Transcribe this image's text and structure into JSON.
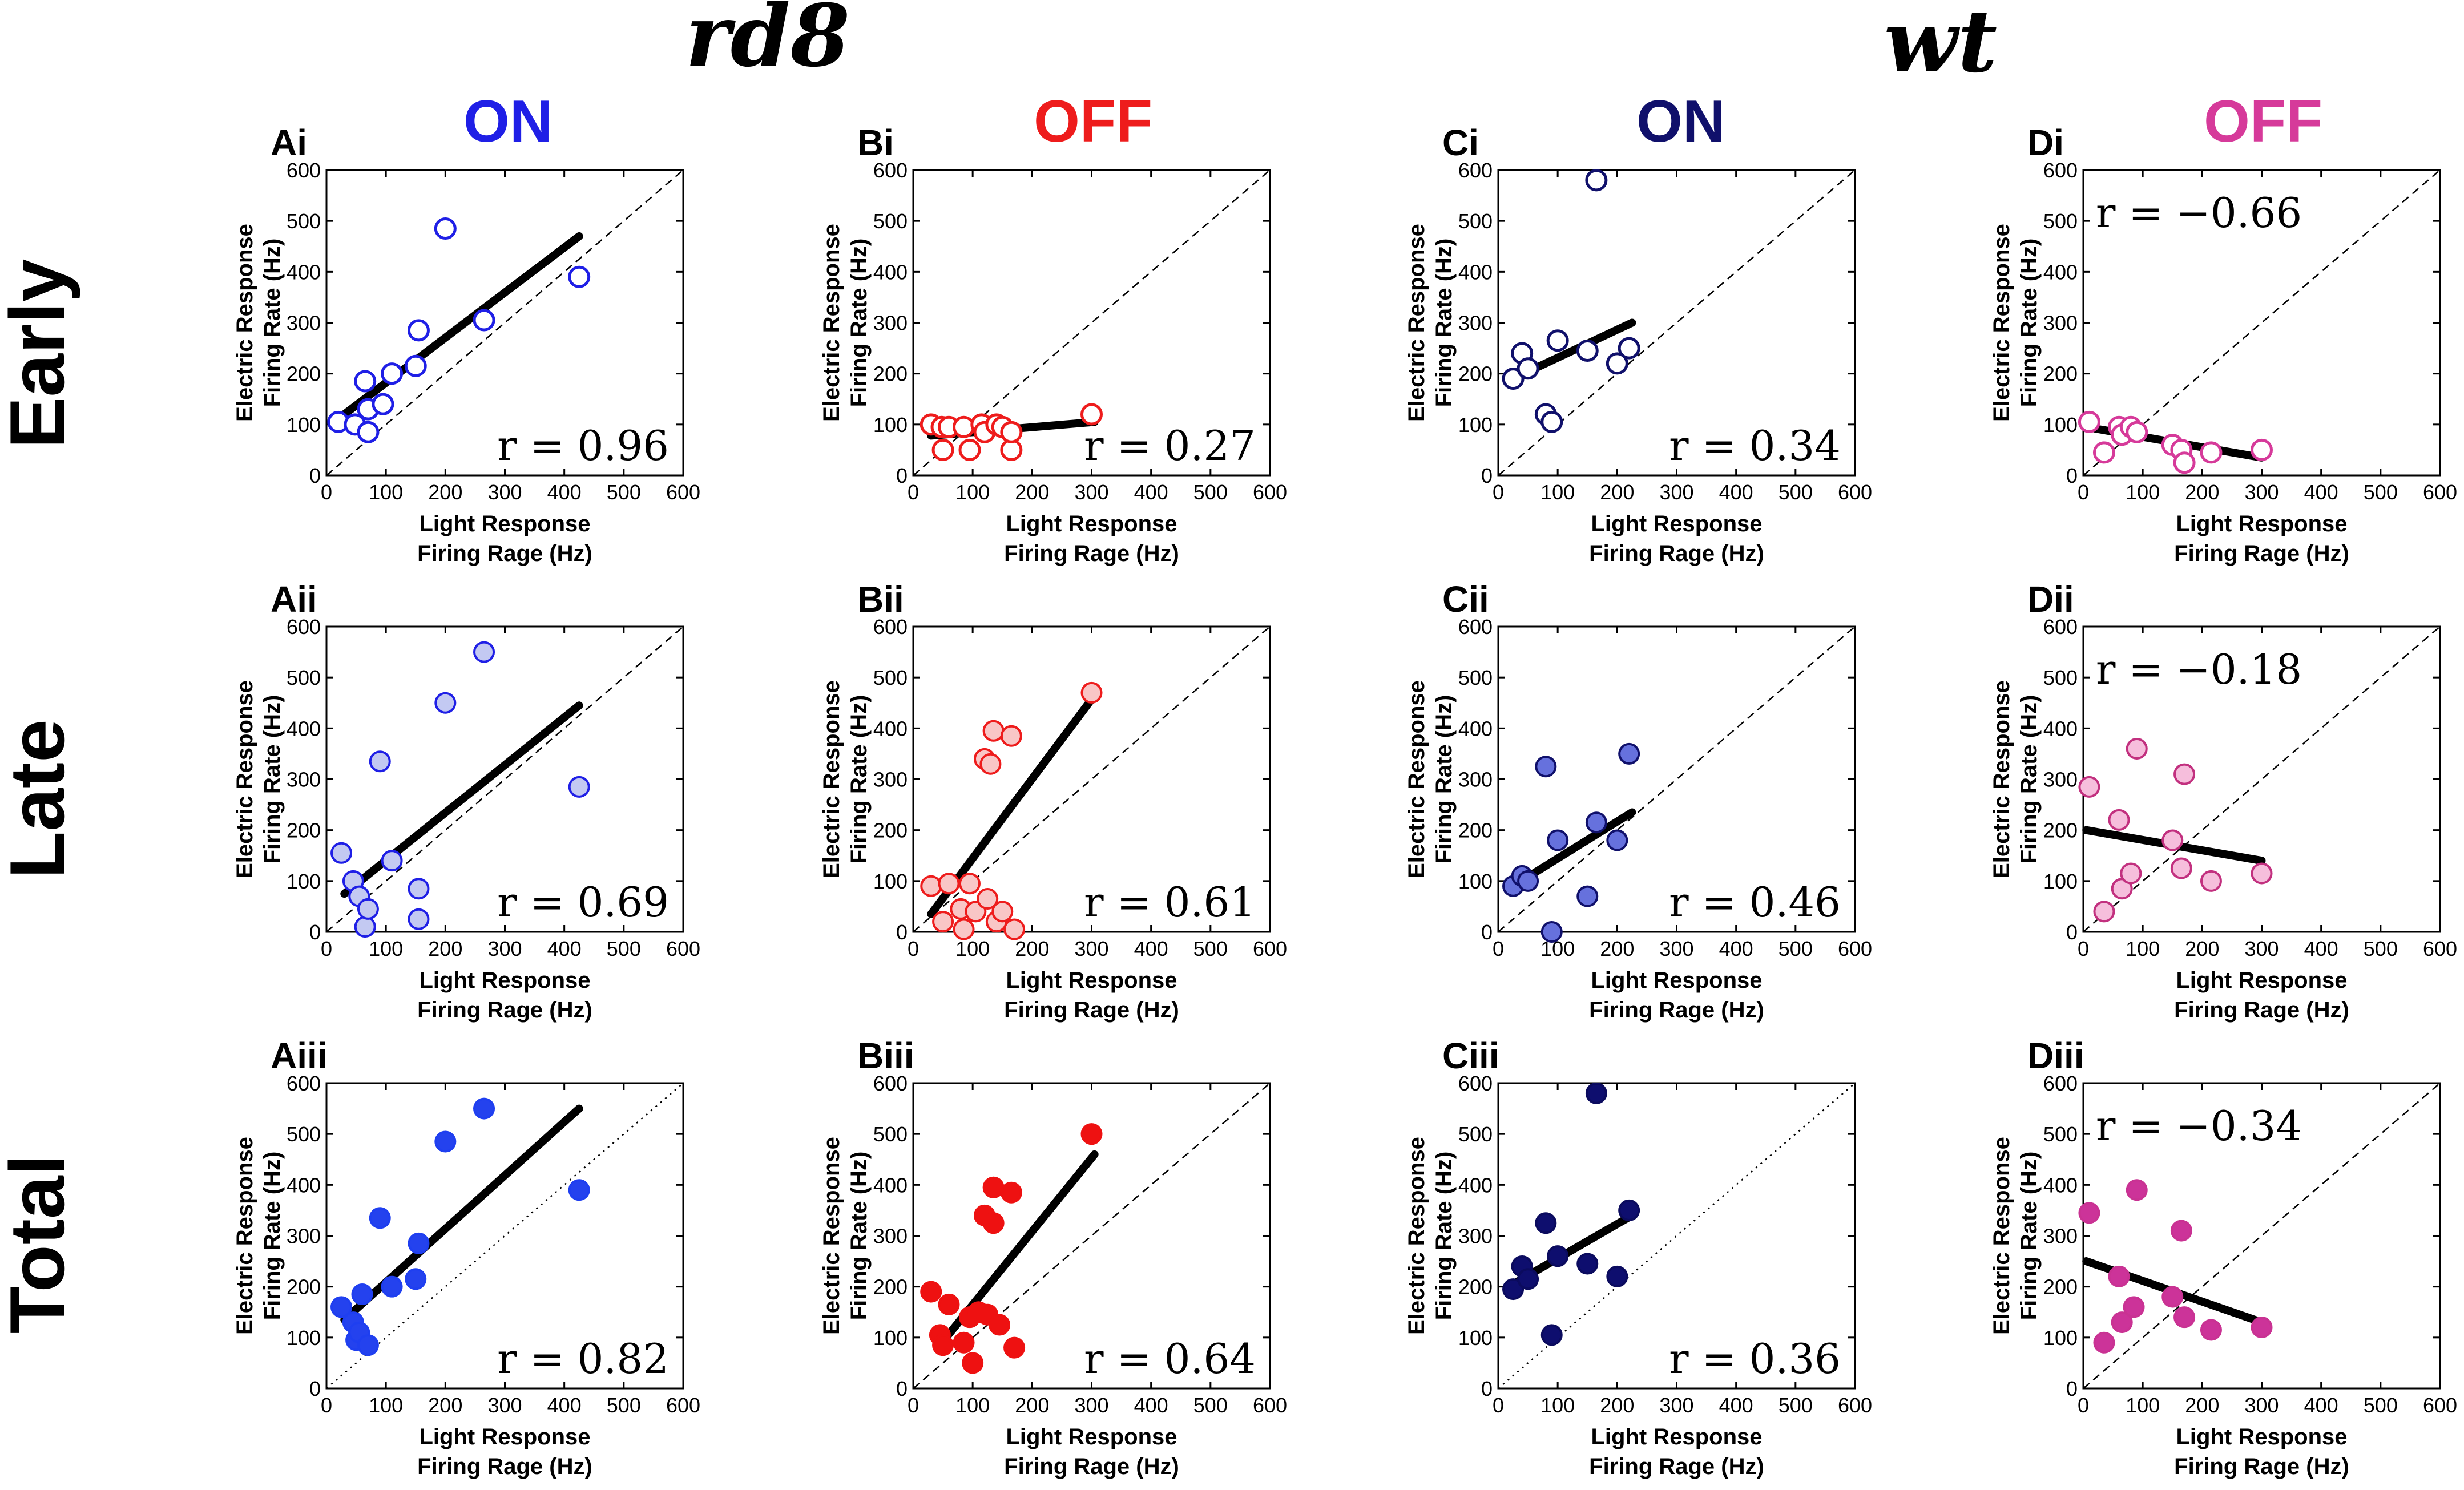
{
  "headers": {
    "groups": [
      "rd8",
      "wt"
    ],
    "columns": [
      {
        "id": "A",
        "label": "ON",
        "color": "#1f1fe6"
      },
      {
        "id": "B",
        "label": "OFF",
        "color": "#ee1c1c"
      },
      {
        "id": "C",
        "label": "ON",
        "color": "#10106b"
      },
      {
        "id": "D",
        "label": "OFF",
        "color": "#d63a9a"
      }
    ],
    "rows": [
      "Early",
      "Late",
      "Total"
    ]
  },
  "axes": {
    "xlabel": [
      "Light Response",
      "Firing Rage (Hz)"
    ],
    "ylabel": [
      "Electric Response",
      "Firing Rate (Hz)"
    ],
    "ticks": [
      0,
      100,
      200,
      300,
      400,
      500,
      600
    ],
    "xlim": [
      0,
      600
    ],
    "ylim": [
      0,
      600
    ]
  },
  "chart_data": [
    {
      "id": "Ai",
      "type": "scatter",
      "r": "r = 0.96",
      "r_position": "bottom-right",
      "marker": "open",
      "stroke": "#1f1fe6",
      "fill": "none",
      "diagonal": "dashed",
      "fit": [
        [
          30,
          120
        ],
        [
          425,
          470
        ]
      ],
      "points": [
        [
          20,
          105
        ],
        [
          48,
          100
        ],
        [
          65,
          185
        ],
        [
          70,
          85
        ],
        [
          70,
          130
        ],
        [
          95,
          140
        ],
        [
          110,
          200
        ],
        [
          150,
          215
        ],
        [
          155,
          285
        ],
        [
          200,
          485
        ],
        [
          265,
          305
        ],
        [
          425,
          390
        ]
      ]
    },
    {
      "id": "Bi",
      "type": "scatter",
      "r": "r = 0.27",
      "r_position": "bottom-right",
      "marker": "open",
      "stroke": "#ee1c1c",
      "fill": "none",
      "diagonal": "dashed",
      "fit": [
        [
          30,
          78
        ],
        [
          305,
          105
        ]
      ],
      "points": [
        [
          30,
          100
        ],
        [
          48,
          95
        ],
        [
          50,
          50
        ],
        [
          60,
          95
        ],
        [
          85,
          95
        ],
        [
          95,
          50
        ],
        [
          115,
          100
        ],
        [
          120,
          85
        ],
        [
          140,
          100
        ],
        [
          150,
          95
        ],
        [
          165,
          50
        ],
        [
          165,
          85
        ],
        [
          300,
          120
        ]
      ]
    },
    {
      "id": "Ci",
      "type": "scatter",
      "r": "r = 0.34",
      "r_position": "bottom-right",
      "marker": "open",
      "stroke": "#10106b",
      "fill": "none",
      "diagonal": "dashed",
      "fit": [
        [
          25,
          190
        ],
        [
          225,
          300
        ]
      ],
      "points": [
        [
          25,
          190
        ],
        [
          40,
          240
        ],
        [
          50,
          210
        ],
        [
          80,
          120
        ],
        [
          90,
          105
        ],
        [
          100,
          265
        ],
        [
          150,
          245
        ],
        [
          165,
          580
        ],
        [
          200,
          220
        ],
        [
          220,
          250
        ]
      ]
    },
    {
      "id": "Di",
      "type": "scatter",
      "r": "r = −0.66",
      "r_position": "top-left",
      "marker": "open",
      "stroke": "#d63a9a",
      "fill": "none",
      "diagonal": "dashed",
      "fit": [
        [
          5,
          95
        ],
        [
          300,
          35
        ]
      ],
      "points": [
        [
          10,
          105
        ],
        [
          35,
          45
        ],
        [
          60,
          95
        ],
        [
          65,
          80
        ],
        [
          80,
          95
        ],
        [
          90,
          85
        ],
        [
          150,
          60
        ],
        [
          165,
          50
        ],
        [
          170,
          25
        ],
        [
          215,
          45
        ],
        [
          300,
          50
        ]
      ]
    },
    {
      "id": "Aii",
      "type": "scatter",
      "r": "r = 0.69",
      "r_position": "bottom-right",
      "marker": "filled",
      "stroke": "#1f1fe6",
      "fill": "#c3c9f2",
      "diagonal": "dashed",
      "fit": [
        [
          30,
          75
        ],
        [
          425,
          445
        ]
      ],
      "points": [
        [
          25,
          155
        ],
        [
          45,
          100
        ],
        [
          55,
          70
        ],
        [
          65,
          10
        ],
        [
          70,
          45
        ],
        [
          90,
          335
        ],
        [
          110,
          140
        ],
        [
          155,
          85
        ],
        [
          155,
          25
        ],
        [
          200,
          450
        ],
        [
          265,
          550
        ],
        [
          425,
          285
        ]
      ]
    },
    {
      "id": "Bii",
      "type": "scatter",
      "r": "r = 0.61",
      "r_position": "bottom-right",
      "marker": "filled",
      "stroke": "#ee1c1c",
      "fill": "#f9c6c6",
      "diagonal": "dashed",
      "fit": [
        [
          30,
          35
        ],
        [
          305,
          465
        ]
      ],
      "points": [
        [
          30,
          90
        ],
        [
          50,
          20
        ],
        [
          60,
          95
        ],
        [
          80,
          45
        ],
        [
          85,
          5
        ],
        [
          95,
          95
        ],
        [
          105,
          40
        ],
        [
          120,
          340
        ],
        [
          125,
          65
        ],
        [
          130,
          330
        ],
        [
          135,
          395
        ],
        [
          140,
          20
        ],
        [
          150,
          40
        ],
        [
          165,
          385
        ],
        [
          170,
          5
        ],
        [
          300,
          470
        ]
      ]
    },
    {
      "id": "Cii",
      "type": "scatter",
      "r": "r = 0.46",
      "r_position": "bottom-right",
      "marker": "filled",
      "stroke": "#10106b",
      "fill": "#6671dd",
      "diagonal": "dashed",
      "fit": [
        [
          25,
          90
        ],
        [
          225,
          235
        ]
      ],
      "points": [
        [
          25,
          90
        ],
        [
          40,
          110
        ],
        [
          50,
          100
        ],
        [
          80,
          325
        ],
        [
          90,
          0
        ],
        [
          100,
          180
        ],
        [
          150,
          70
        ],
        [
          165,
          215
        ],
        [
          200,
          180
        ],
        [
          220,
          350
        ]
      ]
    },
    {
      "id": "Dii",
      "type": "scatter",
      "r": "r = −0.18",
      "r_position": "top-left",
      "marker": "filled",
      "stroke": "#c2307f",
      "fill": "#f6bedc",
      "diagonal": "dashed",
      "fit": [
        [
          5,
          200
        ],
        [
          300,
          140
        ]
      ],
      "points": [
        [
          10,
          285
        ],
        [
          35,
          40
        ],
        [
          60,
          220
        ],
        [
          65,
          85
        ],
        [
          80,
          115
        ],
        [
          90,
          360
        ],
        [
          150,
          180
        ],
        [
          165,
          125
        ],
        [
          170,
          310
        ],
        [
          215,
          100
        ],
        [
          300,
          115
        ]
      ]
    },
    {
      "id": "Aiii",
      "type": "scatter",
      "r": "r = 0.82",
      "r_position": "bottom-right",
      "marker": "filled",
      "stroke": "#1f3ff0",
      "fill": "#2442ee",
      "diagonal": "dotted",
      "fit": [
        [
          30,
          135
        ],
        [
          425,
          550
        ]
      ],
      "points": [
        [
          25,
          160
        ],
        [
          45,
          130
        ],
        [
          50,
          95
        ],
        [
          55,
          110
        ],
        [
          60,
          185
        ],
        [
          70,
          85
        ],
        [
          90,
          335
        ],
        [
          110,
          200
        ],
        [
          150,
          215
        ],
        [
          155,
          285
        ],
        [
          200,
          485
        ],
        [
          265,
          550
        ],
        [
          425,
          390
        ]
      ]
    },
    {
      "id": "Biii",
      "type": "scatter",
      "r": "r = 0.64",
      "r_position": "bottom-right",
      "marker": "filled",
      "stroke": "#ee1111",
      "fill": "#ee1111",
      "diagonal": "dashed",
      "fit": [
        [
          45,
          85
        ],
        [
          305,
          460
        ]
      ],
      "points": [
        [
          30,
          190
        ],
        [
          45,
          105
        ],
        [
          50,
          85
        ],
        [
          60,
          165
        ],
        [
          85,
          90
        ],
        [
          95,
          140
        ],
        [
          100,
          50
        ],
        [
          110,
          150
        ],
        [
          120,
          340
        ],
        [
          125,
          145
        ],
        [
          135,
          395
        ],
        [
          135,
          325
        ],
        [
          145,
          125
        ],
        [
          165,
          385
        ],
        [
          170,
          80
        ],
        [
          300,
          500
        ]
      ]
    },
    {
      "id": "Ciii",
      "type": "scatter",
      "r": "r = 0.36",
      "r_position": "bottom-right",
      "marker": "filled",
      "stroke": "#0b0b5e",
      "fill": "#0e0e6e",
      "diagonal": "dotted",
      "fit": [
        [
          25,
          205
        ],
        [
          225,
          340
        ]
      ],
      "points": [
        [
          25,
          195
        ],
        [
          40,
          240
        ],
        [
          50,
          215
        ],
        [
          80,
          325
        ],
        [
          90,
          105
        ],
        [
          100,
          260
        ],
        [
          150,
          245
        ],
        [
          165,
          580
        ],
        [
          200,
          220
        ],
        [
          220,
          350
        ]
      ]
    },
    {
      "id": "Diii",
      "type": "scatter",
      "r": "r = −0.34",
      "r_position": "top-left",
      "marker": "filled",
      "stroke": "#c93293",
      "fill": "#cc3399",
      "diagonal": "dashed",
      "fit": [
        [
          5,
          250
        ],
        [
          300,
          130
        ]
      ],
      "points": [
        [
          10,
          345
        ],
        [
          35,
          90
        ],
        [
          60,
          220
        ],
        [
          65,
          130
        ],
        [
          85,
          160
        ],
        [
          90,
          390
        ],
        [
          150,
          180
        ],
        [
          165,
          310
        ],
        [
          170,
          140
        ],
        [
          215,
          115
        ],
        [
          300,
          120
        ]
      ]
    }
  ]
}
